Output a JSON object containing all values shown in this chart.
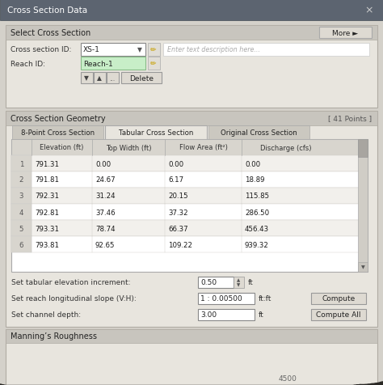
{
  "title": "Cross Section Data",
  "bg_outer": "#c8c5be",
  "bg_dialog": "#dddad3",
  "title_bar_color": "#5c6470",
  "select_section_label": "Select Cross Section",
  "more_btn": "More ►",
  "cross_section_id_label": "Cross section ID:",
  "cross_section_id_value": "XS-1",
  "reach_id_label": "Reach ID:",
  "reach_id_value": "Reach-1",
  "reach_id_bg": "#c8eec8",
  "placeholder_text": "Enter text description here...",
  "delete_btn": "Delete",
  "geometry_label": "Cross Section Geometry",
  "points_label": "[ 41 Points ]",
  "tab1": "8-Point Cross Section",
  "tab2": "Tabular Cross Section",
  "tab3": "Original Cross Section",
  "table_headers": [
    "",
    "Elevation (ft)",
    "Top Width (ft)",
    "Flow Area (ft²)",
    "Discharge (cfs)"
  ],
  "table_rows": [
    [
      "1",
      "791.31",
      "0.00",
      "0.00",
      "0.00"
    ],
    [
      "2",
      "791.81",
      "24.67",
      "6.17",
      "18.89"
    ],
    [
      "3",
      "792.31",
      "31.24",
      "20.15",
      "115.85"
    ],
    [
      "4",
      "792.81",
      "37.46",
      "37.32",
      "286.50"
    ],
    [
      "5",
      "793.31",
      "78.74",
      "66.37",
      "456.43"
    ],
    [
      "6",
      "793.81",
      "92.65",
      "109.22",
      "939.32"
    ]
  ],
  "elevation_increment_label": "Set tabular elevation increment:",
  "elevation_increment_value": "0.50",
  "elevation_increment_unit": "ft",
  "slope_label": "Set reach longitudinal slope (V:H):",
  "slope_value": "1 : 0.00500",
  "slope_unit": "ft:ft",
  "compute_btn": "Compute",
  "channel_depth_label": "Set channel depth:",
  "channel_depth_value": "3.00",
  "channel_depth_unit": "ft",
  "compute_all_btn": "Compute All",
  "mannings_label": "Manning’s Roughness",
  "close_x": "×"
}
